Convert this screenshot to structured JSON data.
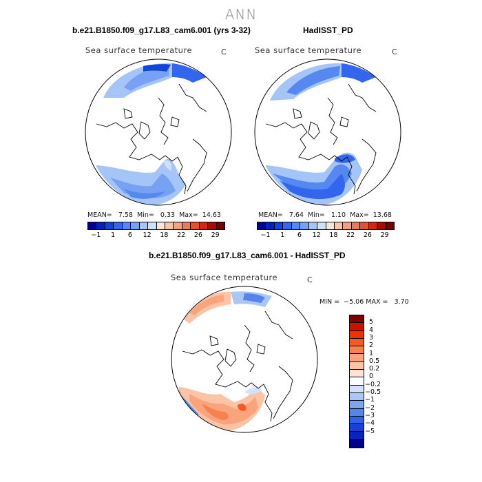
{
  "season": "ANN",
  "panels": {
    "model": {
      "case_title": "b.e21.B1850.f09_g17.L83_cam6.001 (yrs 3-32)",
      "field_title": "Sea surface temperature",
      "units": "C",
      "stats": "MEAN=   7.58  Min=   0.33  Max=  14.63"
    },
    "obs": {
      "case_title": "HadISST_PD",
      "field_title": "Sea surface temperature",
      "units": "C",
      "stats": "MEAN=   7.64  Min=   1.10  Max=  13.68"
    },
    "diff": {
      "case_title": "b.e21.B1850.f09_g17.L83_cam6.001 - HadISST_PD",
      "field_title": "Sea surface temperature",
      "units": "C",
      "stats": "MIN =  −5.06 MAX =   3.70"
    }
  },
  "abs_colorbar": {
    "colors": [
      "#000090",
      "#0022bb",
      "#1144dd",
      "#3366ee",
      "#5588f0",
      "#77a2f4",
      "#a5c4f8",
      "#cfe0fb",
      "#f8e6d8",
      "#f6c4a8",
      "#f2a07e",
      "#ec7a55",
      "#e2522e",
      "#cf2a10",
      "#a40d00",
      "#740000"
    ],
    "labels": [
      "−1",
      "1",
      "6",
      "12",
      "18",
      "22",
      "26",
      "29"
    ]
  },
  "diff_colorbar": {
    "colors": [
      "#7a0000",
      "#cc1100",
      "#ee3300",
      "#f55a25",
      "#f8824f",
      "#f9a47a",
      "#fbc4a6",
      "#fde3d3",
      "#ffffff",
      "#d3e2fa",
      "#aac6f5",
      "#7ea5ef",
      "#5584ea",
      "#2f62e4",
      "#1841d4",
      "#0825b8",
      "#000088"
    ],
    "labels": [
      "5",
      "4",
      "3",
      "2",
      "1",
      "0.5",
      "0.2",
      "0",
      "−0.2",
      "−0.5",
      "−1",
      "−2",
      "−3",
      "−4",
      "−5"
    ]
  }
}
